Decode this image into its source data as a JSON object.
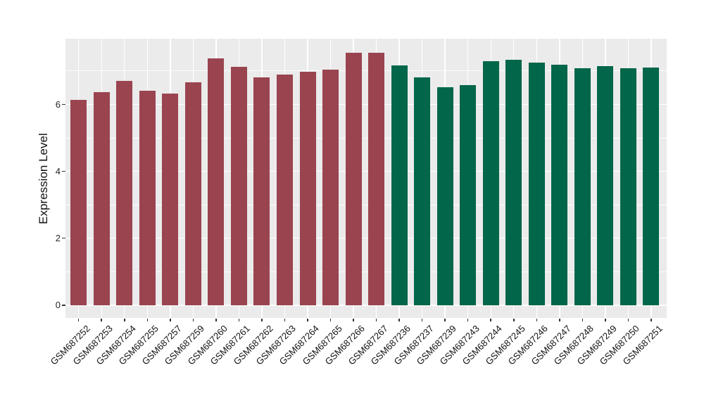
{
  "chart_data": {
    "type": "bar",
    "title": "",
    "xlabel": "",
    "ylabel": "Expression Level",
    "y_ticks": [
      0,
      2,
      4,
      6
    ],
    "ylim": [
      -0.38,
      7.96
    ],
    "legend_position": "none",
    "grid": {
      "h_major_at": [
        0,
        2,
        4,
        6
      ],
      "h_minor_at": [
        1,
        3,
        5,
        7
      ],
      "v_major": "every category center",
      "grid_color": "#FFFFFF",
      "panel_background": "#EBEBEB"
    },
    "groups": {
      "group1": {
        "color": "#9A4450"
      },
      "group2": {
        "color": "#01664A"
      }
    },
    "bars": [
      {
        "label": "GSM687252",
        "value": 6.14,
        "group": "group1"
      },
      {
        "label": "GSM687253",
        "value": 6.37,
        "group": "group1"
      },
      {
        "label": "GSM687254",
        "value": 6.7,
        "group": "group1"
      },
      {
        "label": "GSM687255",
        "value": 6.41,
        "group": "group1"
      },
      {
        "label": "GSM687257",
        "value": 6.33,
        "group": "group1"
      },
      {
        "label": "GSM687259",
        "value": 6.66,
        "group": "group1"
      },
      {
        "label": "GSM687260",
        "value": 7.37,
        "group": "group1"
      },
      {
        "label": "GSM687261",
        "value": 7.13,
        "group": "group1"
      },
      {
        "label": "GSM687262",
        "value": 6.81,
        "group": "group1"
      },
      {
        "label": "GSM687263",
        "value": 6.89,
        "group": "group1"
      },
      {
        "label": "GSM687264",
        "value": 6.98,
        "group": "group1"
      },
      {
        "label": "GSM687265",
        "value": 7.04,
        "group": "group1"
      },
      {
        "label": "GSM687266",
        "value": 7.54,
        "group": "group1"
      },
      {
        "label": "GSM687267",
        "value": 7.54,
        "group": "group1"
      },
      {
        "label": "GSM687236",
        "value": 7.17,
        "group": "group2"
      },
      {
        "label": "GSM687237",
        "value": 6.8,
        "group": "group2"
      },
      {
        "label": "GSM687239",
        "value": 6.51,
        "group": "group2"
      },
      {
        "label": "GSM687243",
        "value": 6.57,
        "group": "group2"
      },
      {
        "label": "GSM687244",
        "value": 7.29,
        "group": "group2"
      },
      {
        "label": "GSM687245",
        "value": 7.33,
        "group": "group2"
      },
      {
        "label": "GSM687246",
        "value": 7.24,
        "group": "group2"
      },
      {
        "label": "GSM687247",
        "value": 7.19,
        "group": "group2"
      },
      {
        "label": "GSM687248",
        "value": 7.08,
        "group": "group2"
      },
      {
        "label": "GSM687249",
        "value": 7.15,
        "group": "group2"
      },
      {
        "label": "GSM687250",
        "value": 7.07,
        "group": "group2"
      },
      {
        "label": "GSM687251",
        "value": 7.09,
        "group": "group2"
      }
    ]
  }
}
